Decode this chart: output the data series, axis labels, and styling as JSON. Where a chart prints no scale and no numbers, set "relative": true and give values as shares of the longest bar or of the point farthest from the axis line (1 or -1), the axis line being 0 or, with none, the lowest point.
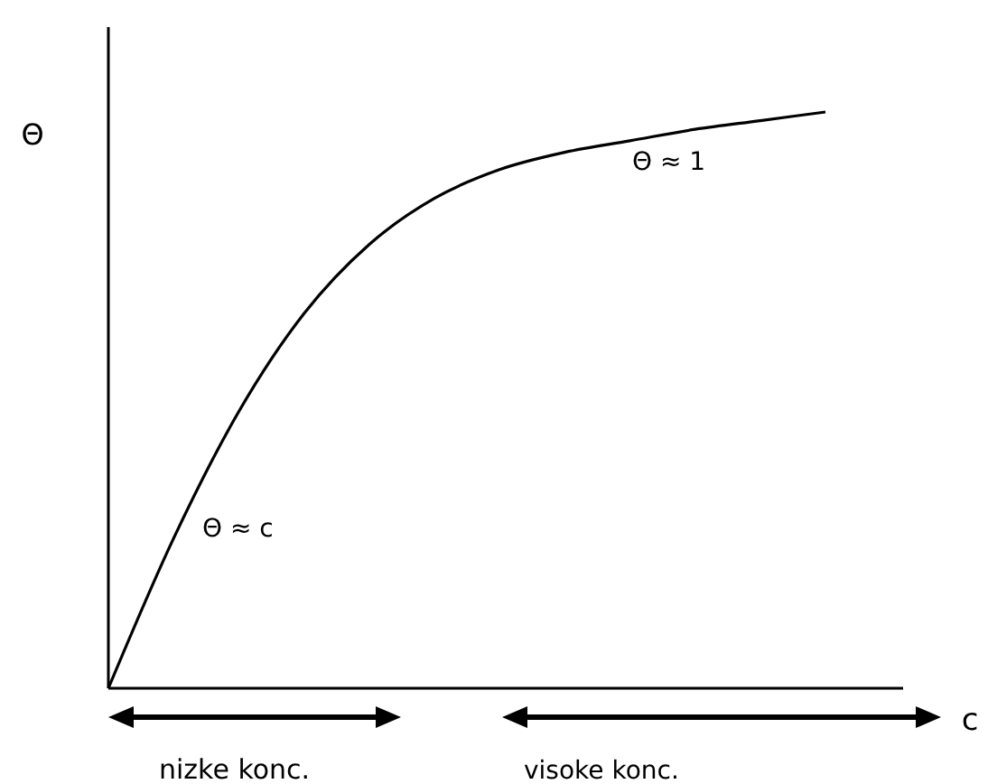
{
  "chart_data": {
    "type": "line",
    "relative": true,
    "xlabel": "c",
    "ylabel": "Θ",
    "categories": [
      null,
      null,
      null,
      null,
      null,
      null,
      null,
      null,
      null,
      null,
      null,
      null
    ],
    "series": [
      {
        "color": "#000000",
        "values": [
          0,
          0.26,
          0.48,
          0.65,
          0.77,
          0.85,
          0.9,
          0.93,
          0.95,
          0.97,
          0.985,
          1
        ]
      }
    ],
    "marker": "none",
    "line_style": "solid",
    "annotations": [
      "Θ ≈ 1",
      "Θ ≈ c",
      "nizke konc.",
      "visoke konc."
    ]
  }
}
